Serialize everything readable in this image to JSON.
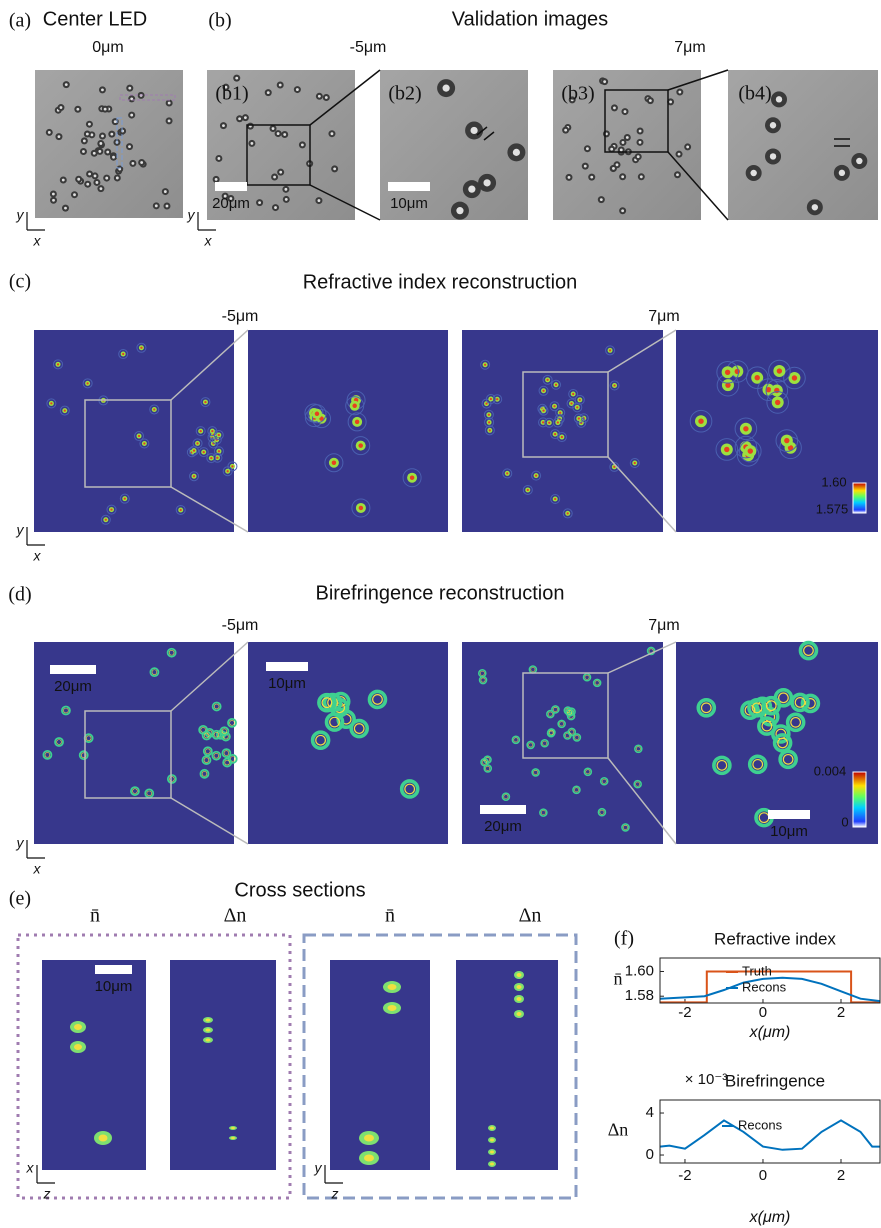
{
  "figure": {
    "a": {
      "label": "(a)",
      "title": "Center LED",
      "depth": "0μm",
      "axis_y": "y",
      "axis_x": "x"
    },
    "b": {
      "label": "(b)",
      "title": "Validation images",
      "depths": [
        "-5μm",
        "7μm"
      ],
      "sublabels": [
        "(b1)",
        "(b2)",
        "(b3)",
        "(b4)"
      ],
      "scalebars": [
        "20μm",
        "10μm"
      ],
      "axis_y": "y",
      "axis_x": "x"
    },
    "c": {
      "label": "(c)",
      "title": "Refractive index reconstruction",
      "depths": [
        "-5μm",
        "7μm"
      ],
      "colorbar": {
        "max": "1.60",
        "min": "1.575"
      },
      "axis_y": "y",
      "axis_x": "x"
    },
    "d": {
      "label": "(d)",
      "title": "Birefringence reconstruction",
      "depths": [
        "-5μm",
        "7μm"
      ],
      "scalebars": [
        "20μm",
        "10μm",
        "20μm",
        "10μm"
      ],
      "colorbar": {
        "max": "0.004",
        "min": "0"
      },
      "axis_y": "y",
      "axis_x": "x"
    },
    "e": {
      "label": "(e)",
      "title": "Cross sections",
      "columns": [
        "n̄",
        "Δn",
        "n̄",
        "Δn"
      ],
      "scalebar": "10μm",
      "axes": [
        "x",
        "z",
        "y",
        "z"
      ]
    },
    "f": {
      "label": "(f)"
    }
  },
  "chart_data": [
    {
      "type": "line",
      "title": "Refractive index",
      "xlabel": "x(μm)",
      "ylabel": "n̄",
      "xlim": [
        -2.64,
        3
      ],
      "ylim": [
        1.5745,
        1.6109
      ],
      "xticks": [
        -2,
        0,
        2
      ],
      "yticks": [
        1.58,
        {
          "value": 1.6,
          "label": "1.60"
        }
      ],
      "series": [
        {
          "name": "Truth",
          "color": "#d95319",
          "x": [
            -2.64,
            -1.44,
            -1.44,
            2.26,
            2.26,
            3
          ],
          "values": [
            1.575,
            1.575,
            1.6,
            1.6,
            1.575,
            1.575
          ]
        },
        {
          "name": "Recons",
          "color": "#0072bd",
          "x": [
            -2.64,
            -2,
            -1.5,
            -1,
            -0.5,
            0,
            0.5,
            1,
            1.5,
            2,
            2.5,
            3
          ],
          "values": [
            1.578,
            1.579,
            1.58,
            1.585,
            1.591,
            1.594,
            1.595,
            1.594,
            1.59,
            1.584,
            1.578,
            1.576
          ]
        }
      ]
    },
    {
      "type": "line",
      "title": "Birefringence",
      "y_multiplier": "× 10⁻³",
      "xlabel": "x(μm)",
      "ylabel": "Δn",
      "xlim": [
        -2.64,
        3
      ],
      "ylim": [
        -0.76,
        5.24
      ],
      "xticks": [
        -2,
        0,
        2
      ],
      "yticks": [
        0,
        4
      ],
      "series": [
        {
          "name": "Recons",
          "color": "#0072bd",
          "x": [
            -2.64,
            -2.4,
            -2,
            -1.5,
            -1,
            -0.5,
            0,
            0.5,
            1,
            1.5,
            2,
            2.5,
            2.8,
            3
          ],
          "values": [
            0.8,
            0.9,
            0.6,
            1.9,
            3.3,
            2.2,
            0.8,
            0.5,
            0.6,
            2.2,
            3.3,
            2.2,
            0.8,
            0.8
          ]
        }
      ]
    }
  ]
}
